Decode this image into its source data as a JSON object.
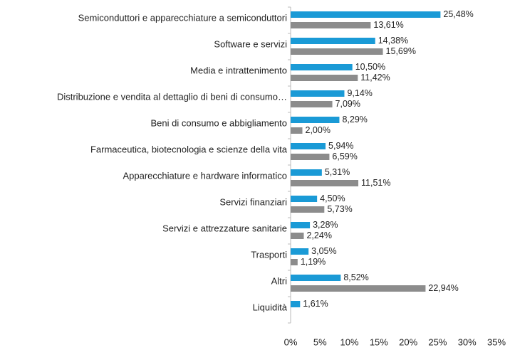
{
  "chart_data": {
    "type": "hbar",
    "categories": [
      "Semiconduttori e apparecchiature a semiconduttori",
      "Software e servizi",
      "Media e intrattenimento",
      "Distribuzione e vendita al dettaglio di beni di consumo…",
      "Beni di consumo e abbigliamento",
      "Farmaceutica, biotecnologia e scienze della vita",
      "Apparecchiature e hardware informatico",
      "Servizi finanziari",
      "Servizi e attrezzature sanitarie",
      "Trasporti",
      "Altri",
      "Liquidità"
    ],
    "series": [
      {
        "color": "#1a9ad6",
        "values": [
          25.48,
          14.38,
          10.5,
          9.14,
          8.29,
          5.94,
          5.31,
          4.5,
          3.28,
          3.05,
          8.52,
          1.61
        ],
        "value_labels": [
          "25,48%",
          "14,38%",
          "10,50%",
          "9,14%",
          "8,29%",
          "5,94%",
          "5,31%",
          "4,50%",
          "3,28%",
          "3,05%",
          "8,52%",
          "1,61%"
        ]
      },
      {
        "color": "#8c8c8c",
        "values": [
          13.61,
          15.69,
          11.42,
          7.09,
          2.0,
          6.59,
          11.51,
          5.73,
          2.24,
          1.19,
          22.94,
          null
        ],
        "value_labels": [
          "13,61%",
          "15,69%",
          "11,42%",
          "7,09%",
          "2,00%",
          "6,59%",
          "11,51%",
          "5,73%",
          "2,24%",
          "1,19%",
          "22,94%",
          null
        ]
      }
    ],
    "xlim": [
      0,
      35
    ],
    "xticks": [
      {
        "value": 0,
        "label": "0%"
      },
      {
        "value": 5,
        "label": "5%"
      },
      {
        "value": 10,
        "label": "10%"
      },
      {
        "value": 15,
        "label": "15%"
      },
      {
        "value": 20,
        "label": "20%"
      },
      {
        "value": 25,
        "label": "25%"
      },
      {
        "value": 30,
        "label": "30%"
      },
      {
        "value": 35,
        "label": "35%"
      }
    ],
    "grid": false
  }
}
